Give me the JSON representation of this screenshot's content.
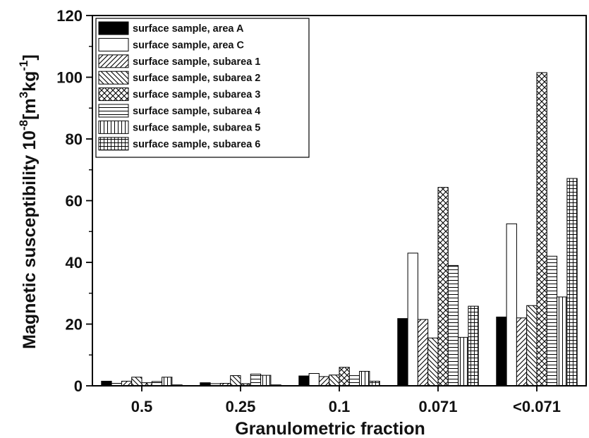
{
  "chart_data": {
    "type": "bar",
    "xlabel": "Granulometric fraction",
    "ylabel": {
      "main": "Magnetic susceptibility 10",
      "exp1": "-8",
      "mid1": "[m",
      "exp2": "3",
      "mid2": "kg",
      "exp3": "-1",
      "end": "]"
    },
    "ylim": [
      0,
      120
    ],
    "yticks": [
      0,
      20,
      40,
      60,
      80,
      100,
      120
    ],
    "categories": [
      "0.5",
      "0.25",
      "0.1",
      "0.071",
      "<0.071"
    ],
    "legend_position": "top-left",
    "series": [
      {
        "name": "surface sample, area A",
        "pattern": "solid-black",
        "values": [
          1.5,
          1.0,
          3.2,
          21.8,
          22.3
        ]
      },
      {
        "name": "surface sample, area C",
        "pattern": "white",
        "values": [
          0.8,
          0.7,
          4.0,
          43.0,
          52.5
        ]
      },
      {
        "name": "surface sample, subarea 1",
        "pattern": "diag-up",
        "values": [
          1.5,
          0.8,
          3.0,
          21.5,
          22.0
        ]
      },
      {
        "name": "surface sample, subarea 2",
        "pattern": "diag-down",
        "values": [
          2.8,
          3.3,
          3.5,
          15.5,
          26.0
        ]
      },
      {
        "name": "surface sample, subarea 3",
        "pattern": "crosshatch",
        "values": [
          1.0,
          0.7,
          6.0,
          64.3,
          101.5
        ]
      },
      {
        "name": "surface sample, subarea 4",
        "pattern": "horizontal",
        "values": [
          1.4,
          3.8,
          3.3,
          39.0,
          42.0
        ]
      },
      {
        "name": "surface sample, subarea 5",
        "pattern": "vertical",
        "values": [
          2.8,
          3.4,
          4.7,
          15.7,
          28.8
        ]
      },
      {
        "name": "surface sample, subarea 6",
        "pattern": "grid",
        "values": [
          0.3,
          0.3,
          1.5,
          25.8,
          67.2
        ]
      }
    ]
  }
}
